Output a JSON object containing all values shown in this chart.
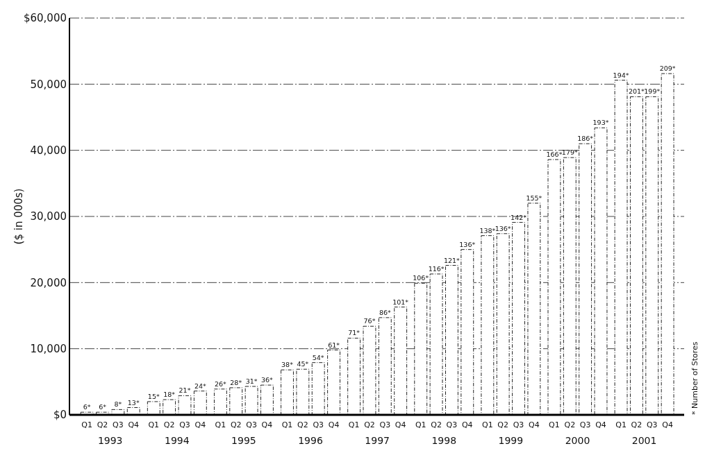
{
  "chart_data": {
    "type": "bar",
    "ylabel": "($ in 000s)",
    "categories": [
      "Q1",
      "Q2",
      "Q3",
      "Q4",
      "Q1",
      "Q2",
      "Q3",
      "Q4",
      "Q1",
      "Q2",
      "Q3",
      "Q4",
      "Q1",
      "Q2",
      "Q3",
      "Q4",
      "Q1",
      "Q2",
      "Q3",
      "Q4",
      "Q1",
      "Q2",
      "Q3",
      "Q4",
      "Q1",
      "Q2",
      "Q3",
      "Q4",
      "Q1",
      "Q2",
      "Q3",
      "Q4",
      "Q1",
      "Q2",
      "Q3",
      "Q4"
    ],
    "values": [
      400,
      400,
      800,
      1100,
      2000,
      2300,
      2900,
      3600,
      3900,
      4100,
      4300,
      4500,
      6800,
      6900,
      7900,
      9800,
      11600,
      13400,
      14700,
      16300,
      19900,
      21300,
      22600,
      25000,
      27100,
      27400,
      29100,
      32000,
      38600,
      38900,
      41000,
      43400,
      50600,
      48100,
      48100,
      51600
    ],
    "color": "#ffffff",
    "ylim": [
      0,
      60000
    ],
    "yticks": [
      {
        "value": 0,
        "label": "$0"
      },
      {
        "value": 10000,
        "label": "10,000"
      },
      {
        "value": 20000,
        "label": "20,000"
      },
      {
        "value": 30000,
        "label": "30,000"
      },
      {
        "value": 40000,
        "label": "40,000"
      },
      {
        "value": 50000,
        "label": "50,000"
      },
      {
        "value": 60000,
        "label": "$60,000"
      }
    ],
    "grid": "y",
    "annotations": [
      "1993",
      "1994",
      "1995",
      "1996",
      "1997",
      "1998",
      "1999",
      "2000",
      "2001",
      "* Number of Stores",
      "6*",
      "6*",
      "8*",
      "13*",
      "15*",
      "18*",
      "21*",
      "24*",
      "26*",
      "28*",
      "31*",
      "36*",
      "38*",
      "45*",
      "54*",
      "61*",
      "71*",
      "76*",
      "86*",
      "101*",
      "106*",
      "116*",
      "121*",
      "136*",
      "138*",
      "136*",
      "142*",
      "155*",
      "166*",
      "179*",
      "186*",
      "193*",
      "194*",
      "201*",
      "199*",
      "209*"
    ]
  }
}
